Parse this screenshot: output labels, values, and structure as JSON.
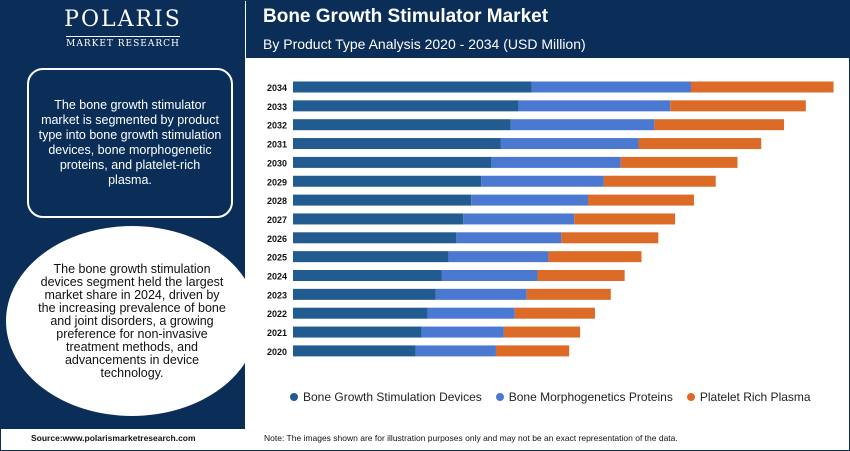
{
  "logo": {
    "name": "POLARIS",
    "subtitle": "MARKET RESEARCH"
  },
  "header": {
    "title": "Bone Growth Stimulator Market",
    "subtitle": "By Product Type Analysis 2020 - 2034 (USD Million)"
  },
  "summary": "The bone growth stimulator market is segmented by product type into bone growth stimulation devices, bone morphogenetic proteins, and platelet-rich plasma.",
  "highlight": "The bone growth stimulation devices segment held the largest market share in 2024, driven by the increasing prevalence of bone and joint disorders, a growing preference for non-invasive treatment methods, and advancements in device technology.",
  "footer": {
    "source": "Source:www.polarismarketresearch.com",
    "note": "Note: The images shown are for illustration purposes only and may not be an exact representation of the data."
  },
  "colors": {
    "navy": "#0b2e59",
    "series": [
      "#215b8f",
      "#4b78d0",
      "#dc6b28"
    ]
  },
  "chart_data": {
    "type": "bar",
    "orientation": "horizontal",
    "stacked": true,
    "categories": [
      "2034",
      "2033",
      "2032",
      "2031",
      "2030",
      "2029",
      "2028",
      "2027",
      "2026",
      "2025",
      "2024",
      "2023",
      "2022",
      "2021",
      "2020"
    ],
    "series": [
      {
        "name": "Bone Growth Stimulation Devices",
        "color": "#215b8f",
        "values": [
          241,
          228,
          220,
          210,
          200,
          190,
          180,
          172,
          165,
          157,
          150,
          144,
          136,
          130,
          124
        ]
      },
      {
        "name": "Bone Morphogenetics Proteins",
        "color": "#4b78d0",
        "values": [
          161,
          153,
          145,
          139,
          131,
          124,
          118,
          112,
          106,
          101,
          97,
          92,
          88,
          83,
          81
        ]
      },
      {
        "name": "Platelet Rich Plasma",
        "color": "#dc6b28",
        "values": [
          144,
          137,
          131,
          124,
          118,
          113,
          107,
          102,
          98,
          94,
          88,
          85,
          81,
          77,
          74
        ]
      }
    ],
    "legend_position": "bottom",
    "grid": false
  }
}
